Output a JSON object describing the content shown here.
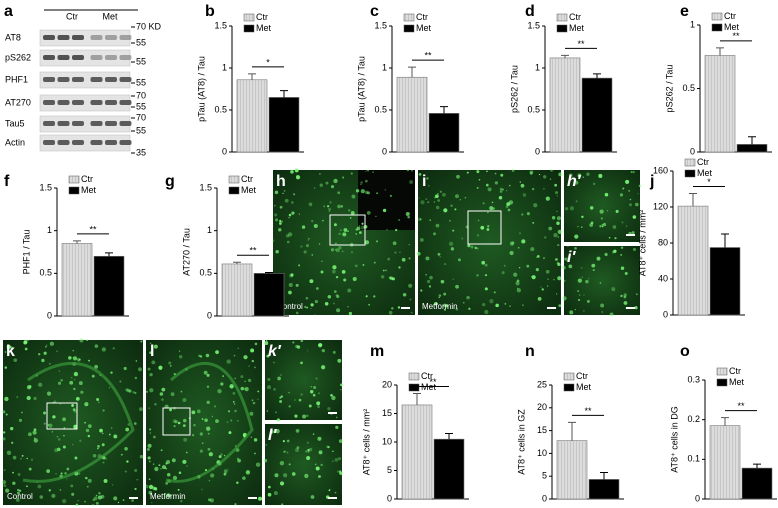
{
  "blot": {
    "label": "a",
    "groups": [
      "Ctr",
      "Met"
    ],
    "rows": [
      "AT8",
      "pS262",
      "PHF1",
      "AT270",
      "Tau5",
      "Actin"
    ],
    "markers": [
      "70 KD",
      "55",
      "55",
      "55",
      "70",
      "55",
      "70",
      "55",
      "35"
    ]
  },
  "images": [
    {
      "label": "h",
      "caption": "Control"
    },
    {
      "label": "i",
      "caption": "Metformin"
    },
    {
      "label": "h′"
    },
    {
      "label": "i′"
    },
    {
      "label": "k",
      "caption": "Control"
    },
    {
      "label": "l",
      "caption": "Metformin"
    },
    {
      "label": "k′"
    },
    {
      "label": "l′"
    }
  ],
  "chart_data": [
    {
      "type": "bar",
      "label": "b",
      "ylabel": "pTau (AT8) / Tau",
      "categories": [
        null
      ],
      "series": [
        {
          "name": "Ctr",
          "color": "#d4d4d4",
          "values": [
            0.86
          ],
          "errors": [
            0.07
          ]
        },
        {
          "name": "Met",
          "color": "#000000",
          "values": [
            0.65
          ],
          "errors": [
            0.08
          ]
        }
      ],
      "annotation": "*",
      "ylim": [
        0,
        1.5
      ],
      "yticks": [
        0,
        0.5,
        1,
        1.5
      ]
    },
    {
      "type": "bar",
      "label": "c",
      "ylabel": "pTau (AT8) / Tau",
      "categories": [
        null
      ],
      "series": [
        {
          "name": "Ctr",
          "color": "#d4d4d4",
          "values": [
            0.89
          ],
          "errors": [
            0.12
          ]
        },
        {
          "name": "Met",
          "color": "#000000",
          "values": [
            0.46
          ],
          "errors": [
            0.08
          ]
        }
      ],
      "annotation": "**",
      "ylim": [
        0,
        1.5
      ],
      "yticks": [
        0,
        0.5,
        1,
        1.5
      ]
    },
    {
      "type": "bar",
      "label": "d",
      "ylabel": "pS262 / Tau",
      "categories": [
        null
      ],
      "series": [
        {
          "name": "Ctr",
          "color": "#d4d4d4",
          "values": [
            1.12
          ],
          "errors": [
            0.03
          ]
        },
        {
          "name": "Met",
          "color": "#000000",
          "values": [
            0.88
          ],
          "errors": [
            0.05
          ]
        }
      ],
      "annotation": "**",
      "ylim": [
        0,
        1.5
      ],
      "yticks": [
        0,
        0.5,
        1,
        1.5
      ]
    },
    {
      "type": "bar",
      "label": "e",
      "ylabel": "pS262 / Tau",
      "categories": [
        null
      ],
      "series": [
        {
          "name": "Ctr",
          "color": "#d4d4d4",
          "values": [
            0.76
          ],
          "errors": [
            0.06
          ]
        },
        {
          "name": "Met",
          "color": "#000000",
          "values": [
            0.06
          ],
          "errors": [
            0.06
          ]
        }
      ],
      "annotation": "**",
      "ylim": [
        0,
        1
      ],
      "yticks": [
        0,
        0.5,
        1
      ]
    },
    {
      "type": "bar",
      "label": "f",
      "ylabel": "PHF1 / Tau",
      "categories": [
        null
      ],
      "series": [
        {
          "name": "Ctr",
          "color": "#d4d4d4",
          "values": [
            0.85
          ],
          "errors": [
            0.03
          ]
        },
        {
          "name": "Met",
          "color": "#000000",
          "values": [
            0.7
          ],
          "errors": [
            0.04
          ]
        }
      ],
      "annotation": "**",
      "ylim": [
        0,
        1.5
      ],
      "yticks": [
        0,
        0.5,
        1,
        1.5
      ]
    },
    {
      "type": "bar",
      "label": "g",
      "ylabel": "AT270 / Tau",
      "categories": [
        null
      ],
      "series": [
        {
          "name": "Ctr",
          "color": "#d4d4d4",
          "values": [
            0.61
          ],
          "errors": [
            0.02
          ]
        },
        {
          "name": "Met",
          "color": "#000000",
          "values": [
            0.5
          ],
          "errors": [
            0.01
          ]
        }
      ],
      "annotation": "**",
      "ylim": [
        0,
        1.5
      ],
      "yticks": [
        0,
        0.5,
        1,
        1.5
      ]
    },
    {
      "type": "bar",
      "label": "j",
      "ylabel": "AT8⁺ cells / mm²",
      "categories": [
        null
      ],
      "series": [
        {
          "name": "Ctr",
          "color": "#d4d4d4",
          "values": [
            121
          ],
          "errors": [
            14
          ]
        },
        {
          "name": "Met",
          "color": "#000000",
          "values": [
            75
          ],
          "errors": [
            15
          ]
        }
      ],
      "annotation": "*",
      "ylim": [
        0,
        160
      ],
      "yticks": [
        0,
        40,
        80,
        120,
        160
      ]
    },
    {
      "type": "bar",
      "label": "m",
      "ylabel": "AT8⁺ cells / mm²",
      "categories": [
        null
      ],
      "series": [
        {
          "name": "Ctr",
          "color": "#d4d4d4",
          "values": [
            16.5
          ],
          "errors": [
            2
          ]
        },
        {
          "name": "Met",
          "color": "#000000",
          "values": [
            10.5
          ],
          "errors": [
            1
          ]
        }
      ],
      "annotation": "**",
      "ylim": [
        0,
        20
      ],
      "yticks": [
        0,
        5,
        10,
        15,
        20
      ]
    },
    {
      "type": "bar",
      "label": "n",
      "ylabel": "AT8⁺ cells in GZ",
      "categories": [
        null
      ],
      "series": [
        {
          "name": "Ctr",
          "color": "#d4d4d4",
          "values": [
            12.8
          ],
          "errors": [
            4
          ]
        },
        {
          "name": "Met",
          "color": "#000000",
          "values": [
            4.3
          ],
          "errors": [
            1.5
          ]
        }
      ],
      "annotation": "**",
      "ylim": [
        0,
        25
      ],
      "yticks": [
        0,
        5,
        10,
        15,
        20,
        25
      ]
    },
    {
      "type": "bar",
      "label": "o",
      "ylabel": "AT8⁺ cells in DG",
      "categories": [
        null
      ],
      "series": [
        {
          "name": "Ctr",
          "color": "#d4d4d4",
          "values": [
            0.185
          ],
          "errors": [
            0.02
          ]
        },
        {
          "name": "Met",
          "color": "#000000",
          "values": [
            0.078
          ],
          "errors": [
            0.01
          ]
        }
      ],
      "annotation": "**",
      "ylim": [
        0,
        0.3
      ],
      "yticks": [
        0,
        0.1,
        0.2,
        0.3
      ]
    }
  ]
}
